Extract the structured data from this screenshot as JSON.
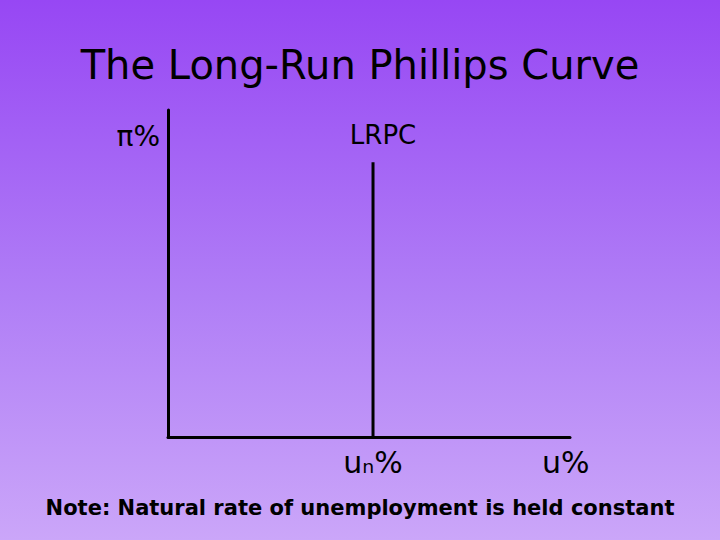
{
  "chart_data": {
    "type": "line",
    "title": "The Long-Run Phillips Curve",
    "xlabel": "u%",
    "ylabel": "π%",
    "xlim": [
      0,
      10
    ],
    "ylim": [
      0,
      10
    ],
    "xticks": [
      {
        "value": 5.1,
        "label": "uₙ%"
      }
    ],
    "tick_labels": "x",
    "grid": false,
    "series": [
      {
        "name": "LRPC",
        "color": "#000000",
        "x": [
          5.1,
          5.1
        ],
        "values": [
          0,
          8.4
        ]
      }
    ],
    "annotations": [
      "Note: Natural rate of unemployment is held constant"
    ]
  }
}
